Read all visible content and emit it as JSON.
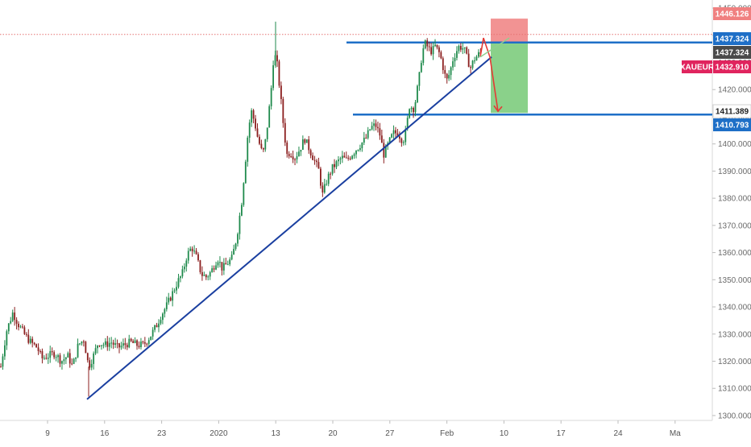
{
  "chart_data": {
    "type": "candlestick",
    "symbol": "XAUEUR",
    "x_ticks": [
      "9",
      "16",
      "23",
      "2020",
      "13",
      "20",
      "27",
      "Feb",
      "10",
      "17",
      "24",
      "Ma"
    ],
    "y_ticks": [
      "1450.000",
      "1440.000",
      "1430.000",
      "1420.000",
      "1410.000",
      "1400.000",
      "1390.000",
      "1380.000",
      "1370.000",
      "1360.000",
      "1350.000",
      "1340.000",
      "1330.000",
      "1320.000",
      "1310.000",
      "1300.000"
    ],
    "y_tick_values": [
      1450,
      1440,
      1430,
      1420,
      1410,
      1400,
      1390,
      1380,
      1370,
      1360,
      1350,
      1340,
      1330,
      1320,
      1310,
      1300
    ],
    "ylim": [
      1298.5,
      1451.5
    ],
    "price_levels": [
      {
        "label": "1446.126",
        "value": 1446.126,
        "color": "#f08080"
      },
      {
        "label": "1437.324",
        "value": 1437.324,
        "color": "#1e6fc7"
      },
      {
        "label": "1437.324",
        "value": 1437.324,
        "color": "#4a4a4a"
      },
      {
        "label": "1432.910",
        "value": 1432.91,
        "color": "#e0245e"
      },
      {
        "label": "1411.389",
        "value": 1411.389,
        "color": "#ffffff"
      },
      {
        "label": "1410.793",
        "value": 1410.793,
        "color": "#1e6fc7"
      }
    ],
    "series_path": [
      [
        1,
        1318
      ],
      [
        8,
        1331
      ],
      [
        16,
        1338
      ],
      [
        22,
        1334
      ],
      [
        30,
        1330
      ],
      [
        38,
        1327
      ],
      [
        46,
        1325
      ],
      [
        52,
        1321
      ],
      [
        60,
        1322
      ],
      [
        68,
        1323
      ],
      [
        76,
        1320
      ],
      [
        84,
        1322
      ],
      [
        90,
        1318
      ],
      [
        97,
        1326
      ],
      [
        104,
        1328
      ],
      [
        110,
        1318
      ],
      [
        116,
        1322
      ],
      [
        122,
        1327
      ],
      [
        130,
        1326
      ],
      [
        138,
        1327
      ],
      [
        146,
        1325
      ],
      [
        154,
        1326
      ],
      [
        162,
        1327
      ],
      [
        170,
        1326
      ],
      [
        178,
        1326
      ],
      [
        186,
        1329
      ],
      [
        194,
        1333
      ],
      [
        200,
        1337
      ],
      [
        206,
        1340
      ],
      [
        214,
        1345
      ],
      [
        220,
        1349
      ],
      [
        226,
        1352
      ],
      [
        232,
        1359
      ],
      [
        238,
        1362
      ],
      [
        244,
        1358
      ],
      [
        250,
        1352
      ],
      [
        256,
        1351
      ],
      [
        262,
        1353
      ],
      [
        270,
        1358
      ],
      [
        276,
        1354
      ],
      [
        282,
        1356
      ],
      [
        288,
        1358
      ],
      [
        294,
        1366
      ],
      [
        300,
        1379
      ],
      [
        304,
        1392
      ],
      [
        308,
        1405
      ],
      [
        312,
        1412
      ],
      [
        316,
        1408
      ],
      [
        320,
        1402
      ],
      [
        326,
        1396
      ],
      [
        330,
        1402
      ],
      [
        336,
        1418
      ],
      [
        340,
        1434
      ],
      [
        344,
        1429
      ],
      [
        348,
        1418
      ],
      [
        352,
        1406
      ],
      [
        356,
        1396
      ],
      [
        360,
        1397
      ],
      [
        366,
        1395
      ],
      [
        372,
        1398
      ],
      [
        378,
        1402
      ],
      [
        384,
        1398
      ],
      [
        390,
        1394
      ],
      [
        396,
        1390
      ],
      [
        400,
        1381
      ],
      [
        406,
        1387
      ],
      [
        412,
        1391
      ],
      [
        418,
        1393
      ],
      [
        424,
        1395
      ],
      [
        430,
        1394
      ],
      [
        436,
        1396
      ],
      [
        442,
        1398
      ],
      [
        448,
        1400
      ],
      [
        454,
        1402
      ],
      [
        460,
        1406
      ],
      [
        466,
        1407
      ],
      [
        472,
        1403
      ],
      [
        476,
        1396
      ],
      [
        482,
        1400
      ],
      [
        488,
        1404
      ],
      [
        494,
        1404
      ],
      [
        500,
        1401
      ],
      [
        504,
        1405
      ],
      [
        508,
        1414
      ],
      [
        514,
        1413
      ],
      [
        520,
        1424
      ],
      [
        524,
        1434
      ],
      [
        528,
        1437
      ],
      [
        532,
        1435
      ],
      [
        536,
        1434
      ],
      [
        540,
        1436
      ],
      [
        546,
        1433
      ],
      [
        550,
        1428
      ],
      [
        554,
        1423
      ],
      [
        558,
        1426
      ],
      [
        562,
        1431
      ],
      [
        566,
        1434
      ],
      [
        570,
        1436
      ],
      [
        576,
        1435
      ],
      [
        580,
        1431
      ],
      [
        584,
        1428
      ],
      [
        588,
        1431
      ],
      [
        594,
        1433
      ],
      [
        598,
        1433
      ]
    ],
    "support_level": 1410.793,
    "resistance_level": 1437.324,
    "trendline": {
      "x_start": 108,
      "y_start": 1306,
      "x_end": 610,
      "y_end": 1432
    },
    "position": {
      "entry": 1437.324,
      "stop": 1446.126,
      "target": 1411.389
    },
    "projection": [
      [
        596,
        1432
      ],
      [
        600,
        1439
      ],
      [
        608,
        1432
      ],
      [
        614,
        1420
      ],
      [
        618,
        1412
      ]
    ]
  }
}
